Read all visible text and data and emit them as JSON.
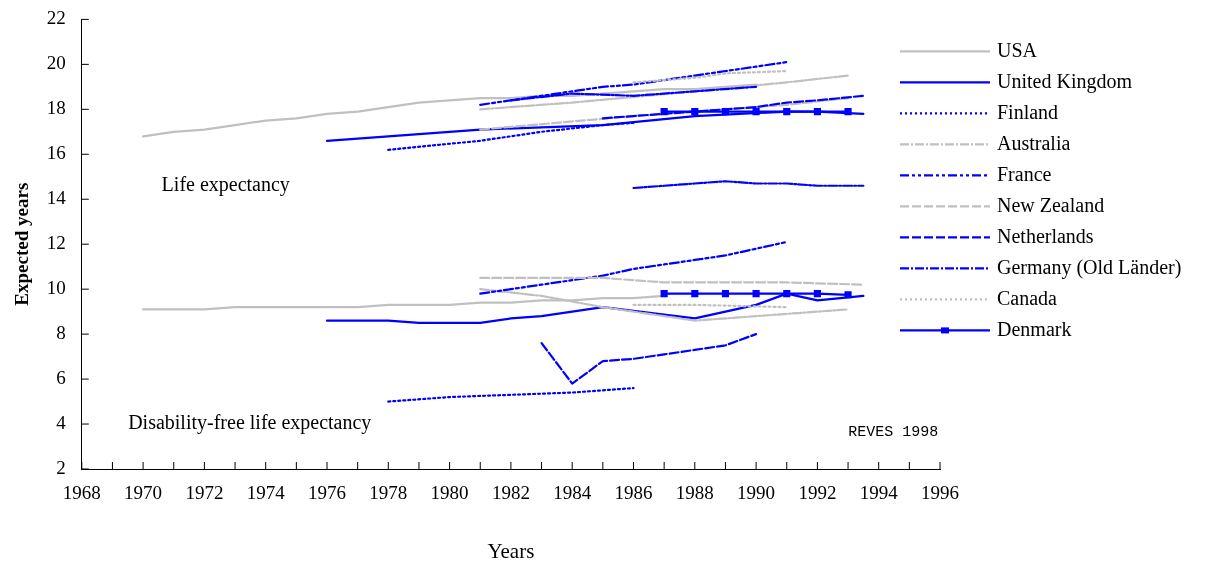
{
  "chart_data": {
    "type": "line",
    "xlabel": "Years",
    "ylabel": "Expected years",
    "xlim": [
      1968,
      1996
    ],
    "ylim": [
      2,
      22
    ],
    "xticks": [
      1968,
      {
        "value": 1969,
        "label": null
      },
      1970,
      {
        "value": 1971,
        "label": null
      },
      1972,
      {
        "value": 1973,
        "label": null
      },
      1974,
      {
        "value": 1975,
        "label": null
      },
      1976,
      {
        "value": 1977,
        "label": null
      },
      1978,
      {
        "value": 1979,
        "label": null
      },
      1980,
      {
        "value": 1981,
        "label": null
      },
      1982,
      {
        "value": 1983,
        "label": null
      },
      1984,
      {
        "value": 1985,
        "label": null
      },
      1986,
      {
        "value": 1987,
        "label": null
      },
      1988,
      {
        "value": 1989,
        "label": null
      },
      1990,
      {
        "value": 1991,
        "label": null
      },
      1992,
      {
        "value": 1993,
        "label": null
      },
      1994,
      {
        "value": 1995,
        "label": null
      },
      1996
    ],
    "yticks": [
      2,
      4,
      6,
      8,
      10,
      12,
      14,
      16,
      18,
      20,
      22
    ],
    "grid": false,
    "legend": "right",
    "marker": "none",
    "annotations": [
      "Life expectancy",
      "Disability-free life expectancy",
      "REVES 1998"
    ],
    "series": [
      {
        "name": "USA",
        "color": "#c0c0c0",
        "line_style": "solid",
        "x": [
          1970,
          1971,
          1972,
          1973,
          1974,
          1975,
          1976,
          1977,
          1978,
          1979,
          1980,
          1981,
          1982,
          1983,
          1984,
          1985,
          1986,
          1987,
          1988,
          1989,
          1990
        ],
        "values": [
          16.8,
          17.0,
          17.1,
          17.3,
          17.5,
          17.6,
          17.8,
          17.9,
          18.1,
          18.3,
          18.4,
          18.5,
          18.5,
          18.6,
          18.6,
          18.7,
          18.8,
          18.9,
          18.9,
          19.0,
          19.1
        ]
      },
      {
        "color": "#c0c0c0",
        "line_style": "solid",
        "x": [
          1970,
          1971,
          1972,
          1973,
          1974,
          1975,
          1976,
          1977,
          1978,
          1979,
          1980,
          1981,
          1982,
          1983,
          1984,
          1985,
          1986,
          1987
        ],
        "values": [
          9.1,
          9.1,
          9.1,
          9.2,
          9.2,
          9.2,
          9.2,
          9.2,
          9.3,
          9.3,
          9.3,
          9.4,
          9.4,
          9.5,
          9.5,
          9.6,
          9.6,
          9.7
        ]
      },
      {
        "name": "United Kingdom",
        "color": "#0000ff",
        "line_style": "solid",
        "x": [
          1976,
          1981,
          1985,
          1988,
          1991,
          1992,
          1993.5
        ],
        "values": [
          16.6,
          17.1,
          17.3,
          17.7,
          17.9,
          17.9,
          17.8
        ]
      },
      {
        "color": "#0000ff",
        "line_style": "solid",
        "x": [
          1976,
          1978,
          1979,
          1981,
          1982,
          1983,
          1985,
          1988,
          1990,
          1991,
          1992,
          1993.5
        ],
        "values": [
          8.6,
          8.6,
          8.5,
          8.5,
          8.7,
          8.8,
          9.2,
          8.7,
          9.3,
          9.8,
          9.5,
          9.7
        ]
      },
      {
        "name": "Finland",
        "color": "#0000ff",
        "line_style": "dotted",
        "x": [
          1978,
          1981,
          1983,
          1985,
          1986
        ],
        "values": [
          16.2,
          16.6,
          17.0,
          17.3,
          17.4
        ]
      },
      {
        "color": "#0000ff",
        "line_style": "dotted",
        "x": [
          1978,
          1980,
          1982,
          1984,
          1985,
          1986
        ],
        "values": [
          5.0,
          5.2,
          5.3,
          5.4,
          5.5,
          5.6
        ]
      },
      {
        "name": "Australia",
        "color": "#c0c0c0",
        "line_style": "dashdot",
        "x": [
          1981,
          1984,
          1988,
          1991,
          1993
        ],
        "values": [
          18.0,
          18.3,
          18.8,
          19.2,
          19.5
        ]
      },
      {
        "color": "#c0c0c0",
        "line_style": "dashdot",
        "x": [
          1981,
          1983,
          1985,
          1988,
          1990,
          1993
        ],
        "values": [
          10.0,
          9.7,
          9.2,
          8.6,
          8.8,
          9.1
        ]
      },
      {
        "name": "France",
        "color": "#0000ff",
        "line_style": "dashdotdot",
        "x": [
          1981,
          1982,
          1983,
          1984,
          1985,
          1986,
          1987,
          1988,
          1989,
          1990,
          1991
        ],
        "values": [
          18.2,
          18.4,
          18.6,
          18.8,
          19.0,
          19.1,
          19.3,
          19.5,
          19.7,
          19.9,
          20.1
        ]
      },
      {
        "color": "#0000ff",
        "line_style": "dashdotdot",
        "x": [
          1981,
          1982,
          1983,
          1984,
          1985,
          1986,
          1987,
          1988,
          1989,
          1990,
          1991
        ],
        "values": [
          9.8,
          10.0,
          10.2,
          10.4,
          10.6,
          10.9,
          11.1,
          11.3,
          11.5,
          11.8,
          12.1
        ]
      },
      {
        "name": "New Zealand",
        "color": "#c0c0c0",
        "line_style": "dashed",
        "x": [
          1981,
          1986,
          1991,
          1993
        ],
        "values": [
          17.1,
          17.7,
          18.2,
          18.5
        ]
      },
      {
        "color": "#c0c0c0",
        "line_style": "dashed",
        "x": [
          1981,
          1985,
          1987,
          1991,
          1993.5
        ],
        "values": [
          10.5,
          10.5,
          10.3,
          10.3,
          10.2
        ]
      },
      {
        "name": "Netherlands",
        "color": "#0000ff",
        "line_style": "dashed",
        "x": [
          1985,
          1986,
          1987,
          1988,
          1989,
          1990,
          1991,
          1992,
          1993.5
        ],
        "values": [
          17.6,
          17.7,
          17.8,
          17.9,
          18.0,
          18.1,
          18.3,
          18.4,
          18.6
        ]
      },
      {
        "color": "#0000ff",
        "line_style": "dashed",
        "x": [
          1983,
          1984,
          1985,
          1986,
          1987,
          1988,
          1989,
          1990
        ],
        "values": [
          7.6,
          5.8,
          6.8,
          6.9,
          7.1,
          7.3,
          7.5,
          8.0
        ]
      },
      {
        "name": "Germany (Old Länder)",
        "color": "#0000ff",
        "line_style": "dashdot",
        "x": [
          1982,
          1984,
          1986,
          1988,
          1990
        ],
        "values": [
          18.4,
          18.7,
          18.6,
          18.8,
          19.0
        ]
      },
      {
        "color": "#0000ff",
        "line_style": "dashdot",
        "x": [
          1986,
          1987,
          1988,
          1989,
          1990,
          1991,
          1992,
          1993.5
        ],
        "values": [
          14.5,
          14.6,
          14.7,
          14.8,
          14.7,
          14.7,
          14.6,
          14.6
        ]
      },
      {
        "name": "Canada",
        "color": "#c0c0c0",
        "line_style": "dotted",
        "x": [
          1986,
          1988,
          1989,
          1991
        ],
        "values": [
          19.2,
          19.4,
          19.6,
          19.7
        ]
      },
      {
        "color": "#c0c0c0",
        "line_style": "dotted",
        "x": [
          1986,
          1988,
          1991
        ],
        "values": [
          9.3,
          9.3,
          9.2
        ]
      },
      {
        "name": "Denmark",
        "color": "#0000ff",
        "line_style": "solid",
        "marker": "square",
        "x": [
          1987,
          1988,
          1989,
          1990,
          1991,
          1992,
          1993
        ],
        "values": [
          17.9,
          17.9,
          17.9,
          17.9,
          17.9,
          17.9,
          17.9
        ]
      },
      {
        "color": "#0000ff",
        "line_style": "solid",
        "marker": "square",
        "x": [
          1987,
          1988,
          1989,
          1990,
          1991,
          1992,
          1993
        ],
        "values": [
          9.8,
          9.8,
          9.8,
          9.8,
          9.8,
          9.8,
          9.75
        ]
      }
    ]
  }
}
